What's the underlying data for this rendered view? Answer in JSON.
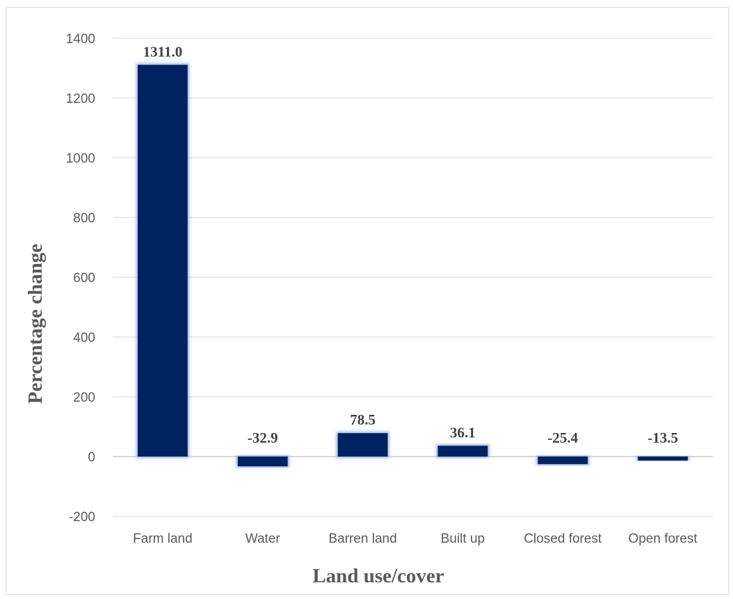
{
  "chart_data": {
    "type": "bar",
    "categories": [
      "Farm land",
      "Water",
      "Barren land",
      "Built up",
      "Closed forest",
      "Open forest"
    ],
    "values": [
      1311.0,
      -32.9,
      78.5,
      36.1,
      -25.4,
      -13.5
    ],
    "data_labels": [
      "1311.0",
      "-32.9",
      "78.5",
      "36.1",
      "-25.4",
      "-13.5"
    ],
    "xlabel": "Land use/cover",
    "ylabel": "Percentage change",
    "ylim": [
      -200,
      1400
    ],
    "yticks": [
      -200,
      0,
      200,
      400,
      600,
      800,
      1000,
      1200,
      1400
    ],
    "grid": true,
    "bar_color": "#002060",
    "legend": "none"
  }
}
